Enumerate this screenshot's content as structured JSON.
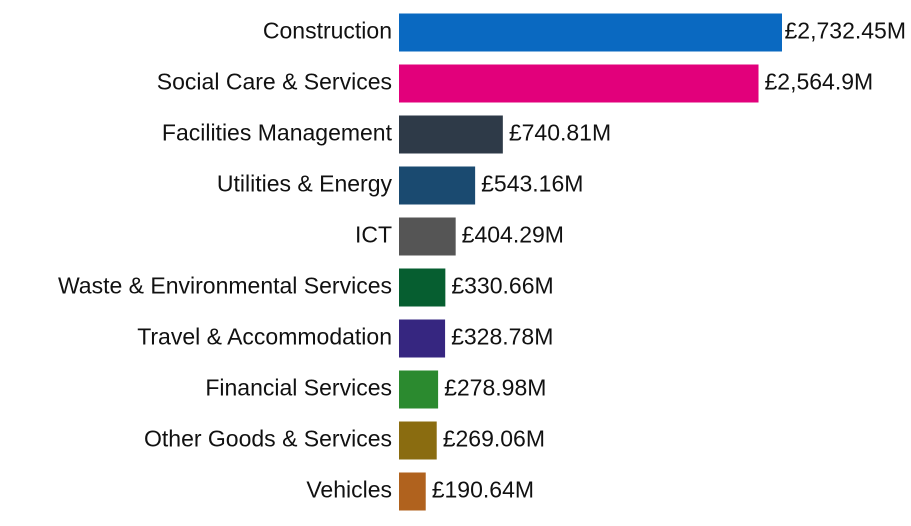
{
  "chart_data": {
    "type": "bar",
    "orientation": "horizontal",
    "categories": [
      "Construction",
      "Social Care & Services",
      "Facilities Management",
      "Utilities & Energy",
      "ICT",
      "Waste & Environmental Services",
      "Travel & Accommodation",
      "Financial Services",
      "Other Goods & Services",
      "Vehicles"
    ],
    "values": [
      2732.45,
      2564.9,
      740.81,
      543.16,
      404.29,
      330.66,
      328.78,
      278.98,
      269.06,
      190.64
    ],
    "value_labels": [
      "£2,732.45M",
      "£2,564.9M",
      "£740.81M",
      "£543.16M",
      "£404.29M",
      "£330.66M",
      "£328.78M",
      "£278.98M",
      "£269.06M",
      "£190.64M"
    ],
    "colors": [
      "#0a69c1",
      "#e2007b",
      "#2e3a48",
      "#1a4a70",
      "#555555",
      "#065e30",
      "#362680",
      "#2b8a2f",
      "#8a6c10",
      "#b0621e"
    ]
  }
}
